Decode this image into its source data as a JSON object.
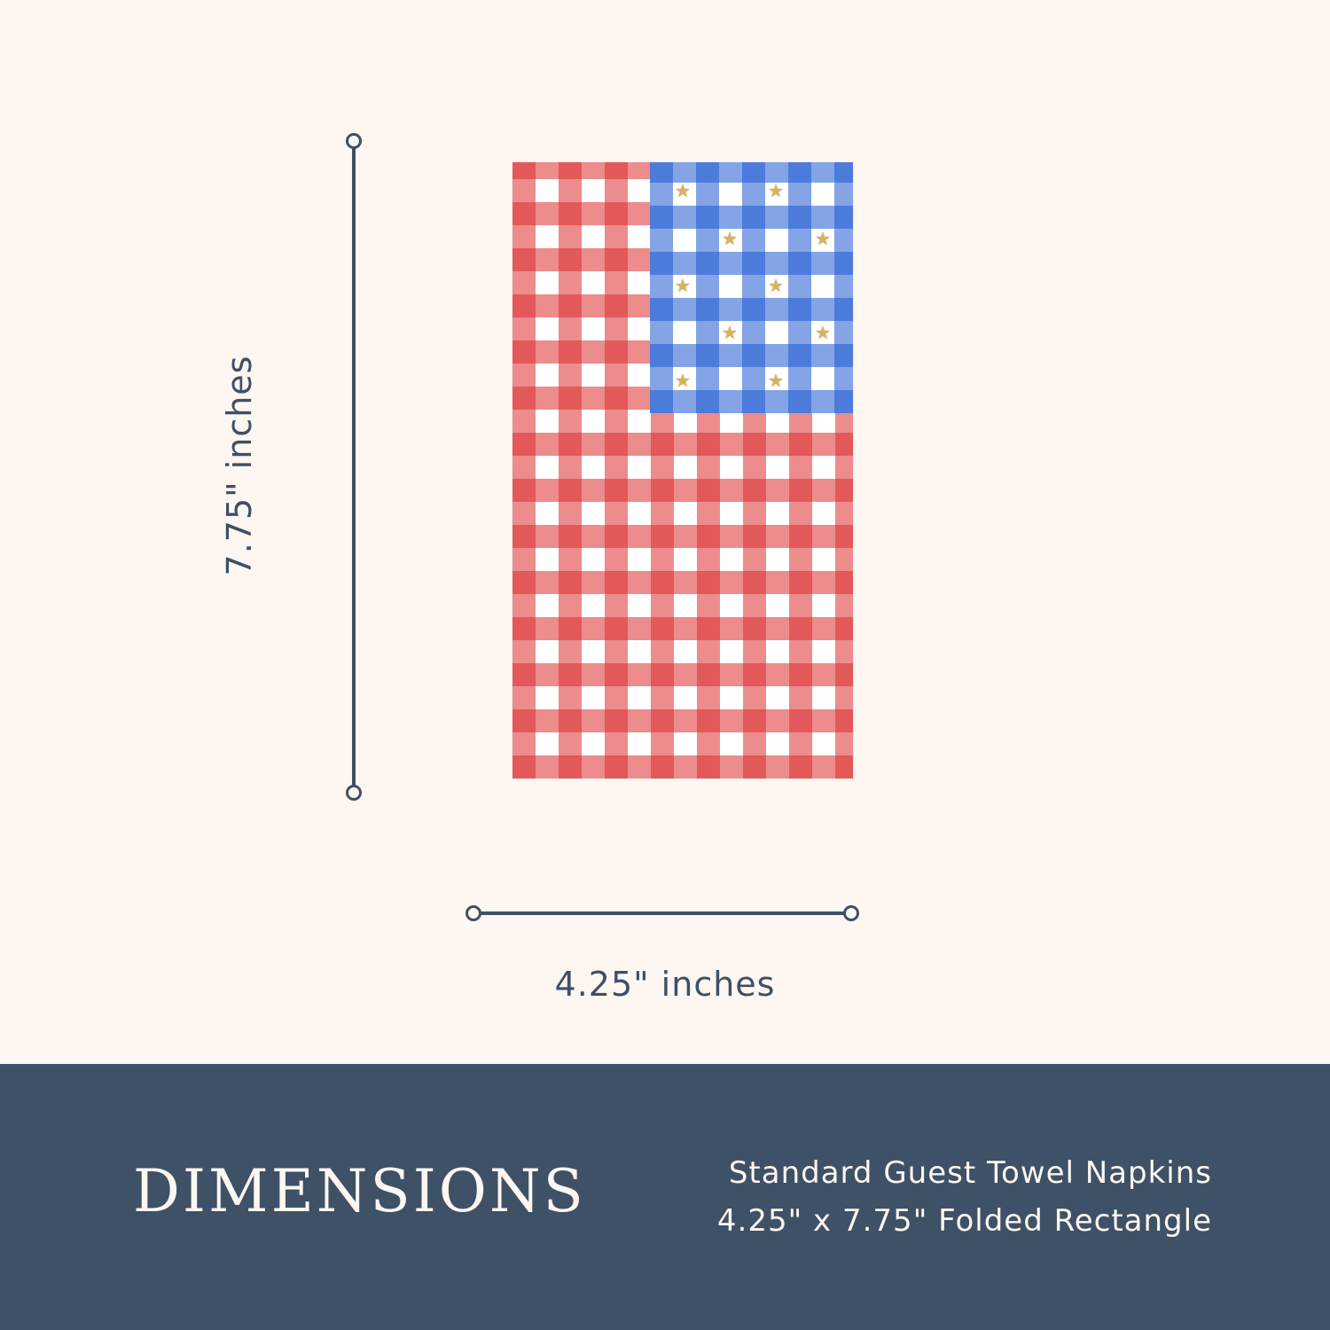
{
  "measurements": {
    "height_label": "7.75\" inches",
    "width_label": "4.25\" inches"
  },
  "footer": {
    "title": "DIMENSIONS",
    "line1": "Standard Guest Towel Napkins",
    "line2": "4.25\" x 7.75\" Folded Rectangle"
  },
  "colors": {
    "background": "#fdf6f1",
    "footer": "#3e5166",
    "line": "#3d5066",
    "gingham_red": "#dc2d2d",
    "gingham_blue": "#1e5ad2",
    "star_gold": "#d9b25f"
  },
  "icons": {
    "star": "★"
  }
}
